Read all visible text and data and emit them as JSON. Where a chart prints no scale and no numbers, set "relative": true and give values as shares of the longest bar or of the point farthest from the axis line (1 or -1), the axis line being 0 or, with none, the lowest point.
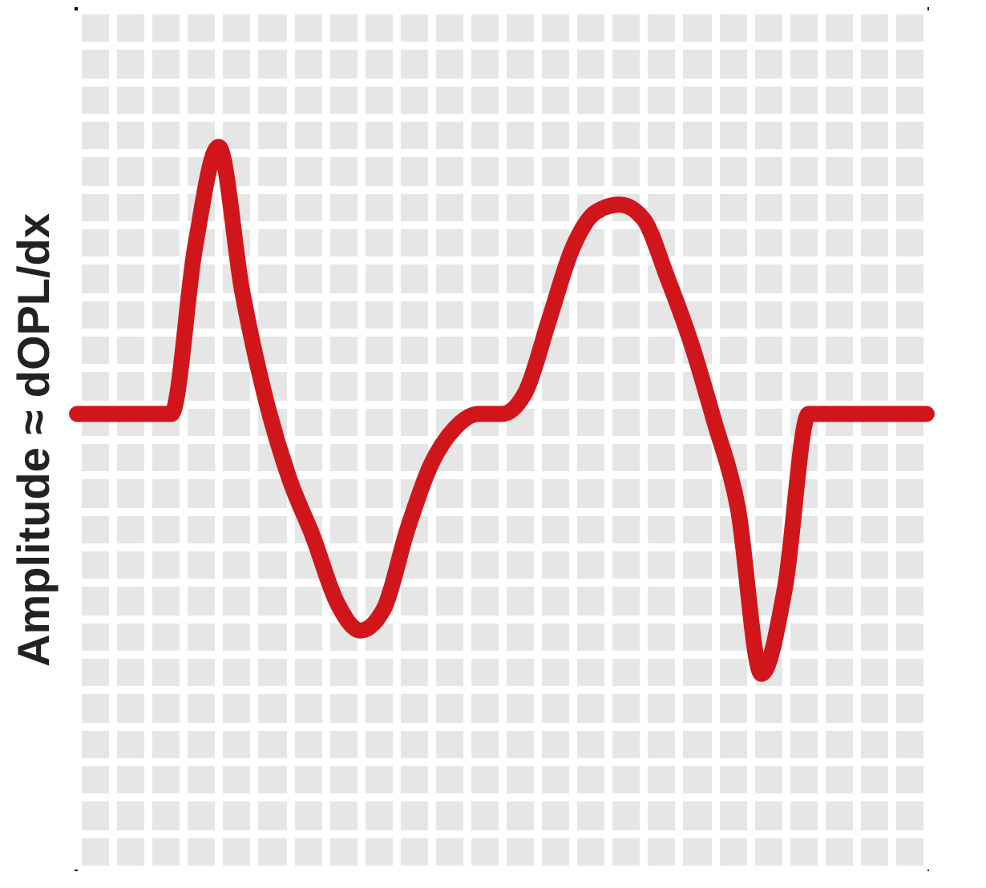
{
  "chart_data": {
    "type": "line",
    "relative": true,
    "ylabel": "Amplitude ≈ dOPL/dx",
    "grid": true,
    "line_style": "solid",
    "categories": [
      null,
      null,
      null,
      null,
      null,
      null,
      null,
      null,
      null,
      null,
      null,
      null,
      null,
      null,
      null,
      null,
      null,
      null,
      null,
      null,
      null,
      null,
      null,
      null,
      null,
      null,
      null,
      null,
      null,
      null,
      null,
      null,
      null,
      null,
      null,
      null,
      null
    ],
    "series": [
      {
        "color": "#d0161b",
        "values": [
          0.63,
          0.63,
          0.63,
          0.63,
          0.63,
          0.86,
          1,
          0.8,
          0.65,
          0.54,
          0.46,
          0.37,
          0.33,
          0.36,
          0.47,
          0.56,
          0.61,
          0.63,
          0.63,
          0.66,
          0.76,
          0.86,
          0.91,
          0.92,
          0.9,
          0.82,
          0.73,
          0.62,
          0.5,
          0.27,
          0.39,
          0.63,
          0.63,
          0.63,
          0.63,
          0.63,
          0.63
        ]
      }
    ]
  }
}
